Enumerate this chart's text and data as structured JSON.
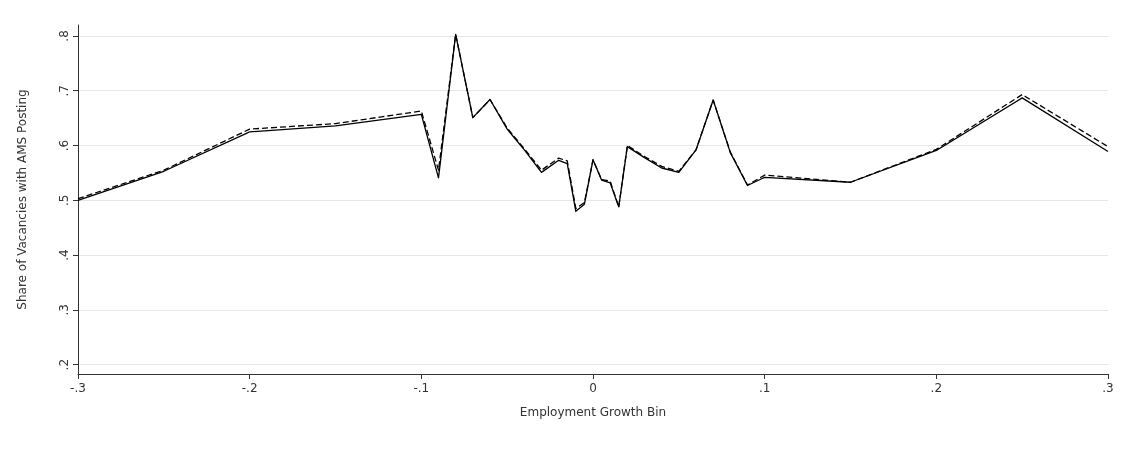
{
  "chart_data": {
    "type": "line",
    "xlabel": "Employment Growth Bin",
    "ylabel": "Share of Vacancies with AMS Posting",
    "x": [
      -0.3,
      -0.25,
      -0.2,
      -0.15,
      -0.1,
      -0.09,
      -0.08,
      -0.07,
      -0.06,
      -0.05,
      -0.04,
      -0.03,
      -0.02,
      -0.015,
      -0.01,
      -0.005,
      0,
      0.005,
      0.01,
      0.015,
      0.02,
      0.03,
      0.04,
      0.05,
      0.06,
      0.07,
      0.08,
      0.09,
      0.1,
      0.15,
      0.2,
      0.25,
      0.3
    ],
    "series": [
      {
        "color": "#000000",
        "line_style": "solid",
        "values": [
          0.5,
          0.553,
          0.625,
          0.636,
          0.657,
          0.541,
          0.803,
          0.651,
          0.684,
          0.63,
          0.592,
          0.551,
          0.573,
          0.567,
          0.48,
          0.493,
          0.574,
          0.537,
          0.532,
          0.488,
          0.598,
          0.578,
          0.559,
          0.551,
          0.592,
          0.683,
          0.587,
          0.527,
          0.542,
          0.533,
          0.591,
          0.687,
          0.589
        ]
      },
      {
        "color": "#000000",
        "line_style": "dashed",
        "values": [
          0.503,
          0.555,
          0.63,
          0.64,
          0.663,
          0.555,
          0.803,
          0.651,
          0.684,
          0.632,
          0.594,
          0.555,
          0.577,
          0.572,
          0.485,
          0.496,
          0.574,
          0.538,
          0.535,
          0.488,
          0.6,
          0.58,
          0.562,
          0.553,
          0.592,
          0.683,
          0.588,
          0.528,
          0.546,
          0.533,
          0.593,
          0.693,
          0.598
        ]
      }
    ],
    "xlim": [
      -0.3,
      0.3
    ],
    "xticks": [
      {
        "value": -0.3,
        "label": "-.3"
      },
      {
        "value": -0.2,
        "label": "-.2"
      },
      {
        "value": -0.1,
        "label": "-.1"
      },
      0,
      {
        "value": 0.1,
        "label": ".1"
      },
      {
        "value": 0.2,
        "label": ".2"
      },
      {
        "value": 0.3,
        "label": ".3"
      }
    ],
    "ylim": [
      0.183,
      0.82
    ],
    "yticks": [
      {
        "value": 0.2,
        "label": ".2"
      },
      {
        "value": 0.3,
        "label": ".3"
      },
      {
        "value": 0.4,
        "label": ".4"
      },
      {
        "value": 0.5,
        "label": ".5"
      },
      {
        "value": 0.6,
        "label": ".6"
      },
      {
        "value": 0.7,
        "label": ".7"
      },
      {
        "value": 0.8,
        "label": ".8"
      }
    ],
    "grid": "y",
    "marker": "none"
  }
}
